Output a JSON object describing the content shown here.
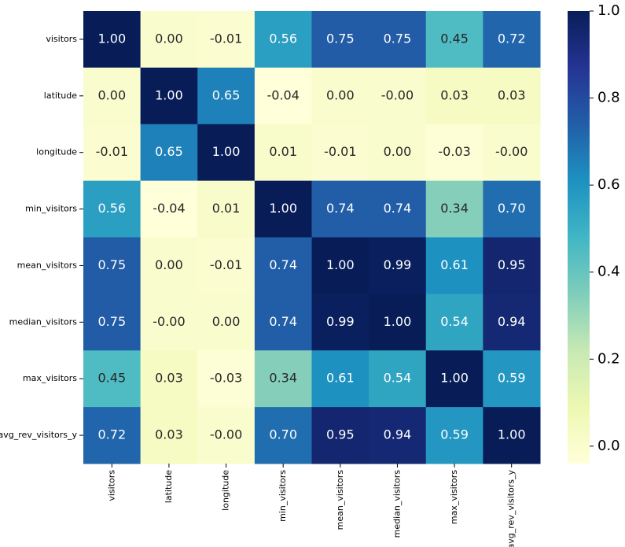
{
  "chart_data": {
    "type": "heatmap",
    "x_categories": [
      "visitors",
      "latitude",
      "longitude",
      "min_visitors",
      "mean_visitors",
      "median_visitors",
      "max_visitors",
      "avg_rev_visitors_y"
    ],
    "y_categories": [
      "visitors",
      "latitude",
      "longitude",
      "min_visitors",
      "mean_visitors",
      "median_visitors",
      "max_visitors",
      "avg_rev_visitors_y"
    ],
    "values": [
      [
        1,
        0,
        -0.01,
        0.56,
        0.75,
        0.75,
        0.45,
        0.72
      ],
      [
        0,
        1,
        0.65,
        -0.04,
        0,
        0,
        0.03,
        0.03
      ],
      [
        -0.01,
        0.65,
        1,
        0.01,
        -0.01,
        0,
        -0.03,
        0
      ],
      [
        0.56,
        -0.04,
        0.01,
        1,
        0.74,
        0.74,
        0.34,
        0.7
      ],
      [
        0.75,
        0,
        -0.01,
        0.74,
        1,
        0.99,
        0.61,
        0.95
      ],
      [
        0.75,
        0,
        0,
        0.74,
        0.99,
        1,
        0.54,
        0.94
      ],
      [
        0.45,
        0.03,
        -0.03,
        0.34,
        0.61,
        0.54,
        1,
        0.59
      ],
      [
        0.72,
        0.03,
        0,
        0.7,
        0.95,
        0.94,
        0.59,
        1
      ]
    ],
    "value_labels": [
      [
        "1.00",
        "0.00",
        "-0.01",
        "0.56",
        "0.75",
        "0.75",
        "0.45",
        "0.72"
      ],
      [
        "0.00",
        "1.00",
        "0.65",
        "-0.04",
        "0.00",
        "-0.00",
        "0.03",
        "0.03"
      ],
      [
        "-0.01",
        "0.65",
        "1.00",
        "0.01",
        "-0.01",
        "0.00",
        "-0.03",
        "-0.00"
      ],
      [
        "0.56",
        "-0.04",
        "0.01",
        "1.00",
        "0.74",
        "0.74",
        "0.34",
        "0.70"
      ],
      [
        "0.75",
        "0.00",
        "-0.01",
        "0.74",
        "1.00",
        "0.99",
        "0.61",
        "0.95"
      ],
      [
        "0.75",
        "-0.00",
        "0.00",
        "0.74",
        "0.99",
        "1.00",
        "0.54",
        "0.94"
      ],
      [
        "0.45",
        "0.03",
        "-0.03",
        "0.34",
        "0.61",
        "0.54",
        "1.00",
        "0.59"
      ],
      [
        "0.72",
        "0.03",
        "-0.00",
        "0.70",
        "0.95",
        "0.94",
        "0.59",
        "1.00"
      ]
    ],
    "zlim": [
      -0.04,
      1
    ],
    "zticks": [
      {
        "value": 0,
        "label": "0.0"
      },
      0.2,
      0.4,
      0.6,
      0.8,
      {
        "value": 1,
        "label": "1.0"
      }
    ],
    "colormap": [
      "#ffffd9",
      "#edf8b1",
      "#c7e9b4",
      "#7fcdbb",
      "#41b6c4",
      "#1d91c0",
      "#225ea8",
      "#253494",
      "#081d58"
    ]
  }
}
